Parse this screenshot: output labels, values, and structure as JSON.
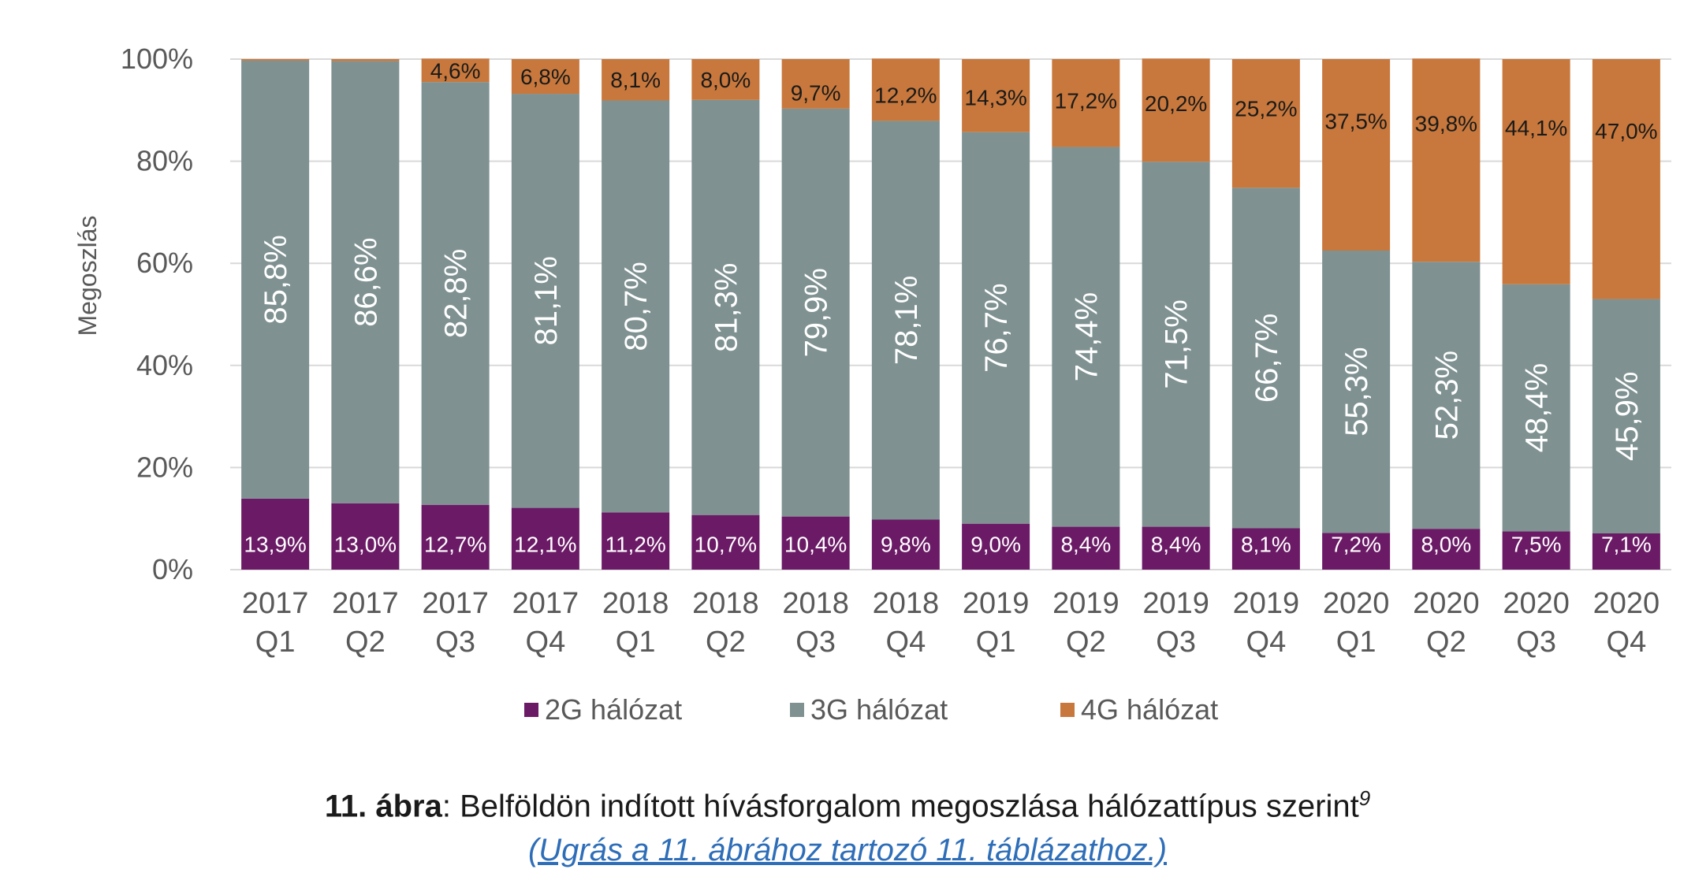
{
  "chart_data": {
    "type": "bar",
    "stacked": true,
    "ylabel": "Megoszlás",
    "ylim": [
      0,
      100
    ],
    "yticks": [
      "0%",
      "20%",
      "40%",
      "60%",
      "80%",
      "100%"
    ],
    "grid": true,
    "legend_position": "bottom",
    "categories": [
      [
        "2017",
        "Q1"
      ],
      [
        "2017",
        "Q2"
      ],
      [
        "2017",
        "Q3"
      ],
      [
        "2017",
        "Q4"
      ],
      [
        "2018",
        "Q1"
      ],
      [
        "2018",
        "Q2"
      ],
      [
        "2018",
        "Q3"
      ],
      [
        "2018",
        "Q4"
      ],
      [
        "2019",
        "Q1"
      ],
      [
        "2019",
        "Q2"
      ],
      [
        "2019",
        "Q3"
      ],
      [
        "2019",
        "Q4"
      ],
      [
        "2020",
        "Q1"
      ],
      [
        "2020",
        "Q2"
      ],
      [
        "2020",
        "Q3"
      ],
      [
        "2020",
        "Q4"
      ]
    ],
    "series": [
      {
        "name": "2G hálózat",
        "color": "#6b1a66",
        "values": [
          13.9,
          13.0,
          12.7,
          12.1,
          11.2,
          10.7,
          10.4,
          9.8,
          9.0,
          8.4,
          8.4,
          8.1,
          7.2,
          8.0,
          7.5,
          7.1
        ],
        "labels": [
          "13,9%",
          "13,0%",
          "12,7%",
          "12,1%",
          "11,2%",
          "10,7%",
          "10,4%",
          "9,8%",
          "9,0%",
          "8,4%",
          "8,4%",
          "8,1%",
          "7,2%",
          "8,0%",
          "7,5%",
          "7,1%"
        ]
      },
      {
        "name": "3G hálózat",
        "color": "#7f9191",
        "values": [
          85.8,
          86.6,
          82.8,
          81.1,
          80.7,
          81.3,
          79.9,
          78.1,
          76.7,
          74.4,
          71.5,
          66.7,
          55.3,
          52.3,
          48.4,
          45.9
        ],
        "labels": [
          "85,8%",
          "86,6%",
          "82,8%",
          "81,1%",
          "80,7%",
          "81,3%",
          "79,9%",
          "78,1%",
          "76,7%",
          "74,4%",
          "71,5%",
          "66,7%",
          "55,3%",
          "52,3%",
          "48,4%",
          "45,9%"
        ]
      },
      {
        "name": "4G hálózat",
        "color": "#c8783c",
        "values": [
          0.3,
          0.4,
          4.6,
          6.8,
          8.1,
          8.0,
          9.7,
          12.2,
          14.3,
          17.2,
          20.2,
          25.2,
          37.5,
          39.8,
          44.1,
          47.0
        ],
        "labels": [
          "",
          "",
          "4,6%",
          "6,8%",
          "8,1%",
          "8,0%",
          "9,7%",
          "12,2%",
          "14,3%",
          "17,2%",
          "20,2%",
          "25,2%",
          "37,5%",
          "39,8%",
          "44,1%",
          "47,0%"
        ]
      }
    ]
  },
  "caption": {
    "number": "11. ábra",
    "separator": ": ",
    "text": "Belföldön indított hívásforgalom megoszlása hálózattípus szerint",
    "footnote": "9",
    "link": "(Ugrás a 11. ábrához tartozó 11. táblázathoz.)"
  }
}
